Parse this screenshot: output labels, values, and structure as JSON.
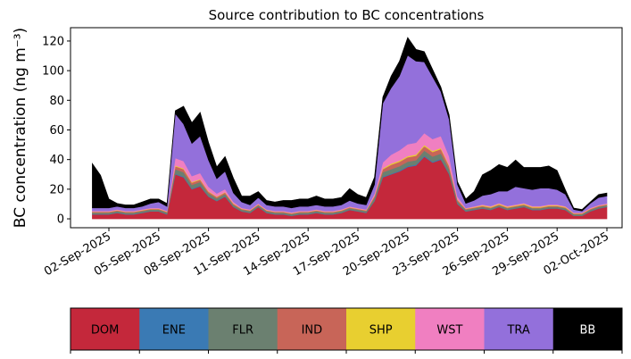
{
  "chart_data": {
    "type": "area",
    "stacked": true,
    "title": "Source contribution to BC concentrations",
    "ylabel": "BC concentration (ng m⁻³)",
    "xlabel": "",
    "ylim": [
      -6,
      129
    ],
    "yticks": [
      0,
      20,
      40,
      60,
      80,
      100,
      120
    ],
    "xtick_labels": [
      "02-Sep-2025",
      "05-Sep-2025",
      "08-Sep-2025",
      "11-Sep-2025",
      "14-Sep-2025",
      "17-Sep-2025",
      "20-Sep-2025",
      "23-Sep-2025",
      "26-Sep-2025",
      "29-Sep-2025",
      "02-Oct-2025"
    ],
    "grid": false,
    "legend_placement": "bottom",
    "x": [
      "2025-09-01",
      "2025-09-01T12:00",
      "2025-09-02",
      "2025-09-02T12:00",
      "2025-09-03",
      "2025-09-03T12:00",
      "2025-09-04",
      "2025-09-04T12:00",
      "2025-09-05",
      "2025-09-05T12:00",
      "2025-09-06",
      "2025-09-06T12:00",
      "2025-09-07",
      "2025-09-07T12:00",
      "2025-09-08",
      "2025-09-08T12:00",
      "2025-09-09",
      "2025-09-09T12:00",
      "2025-09-10",
      "2025-09-10T12:00",
      "2025-09-11",
      "2025-09-11T12:00",
      "2025-09-12",
      "2025-09-12T12:00",
      "2025-09-13",
      "2025-09-13T12:00",
      "2025-09-14",
      "2025-09-14T12:00",
      "2025-09-15",
      "2025-09-15T12:00",
      "2025-09-16",
      "2025-09-16T12:00",
      "2025-09-17",
      "2025-09-17T12:00",
      "2025-09-18",
      "2025-09-18T12:00",
      "2025-09-19",
      "2025-09-19T12:00",
      "2025-09-20",
      "2025-09-20T12:00",
      "2025-09-21",
      "2025-09-21T12:00",
      "2025-09-22",
      "2025-09-22T12:00",
      "2025-09-23",
      "2025-09-23T12:00",
      "2025-09-24",
      "2025-09-24T12:00",
      "2025-09-25",
      "2025-09-25T12:00",
      "2025-09-26",
      "2025-09-26T12:00",
      "2025-09-27",
      "2025-09-27T12:00",
      "2025-09-28",
      "2025-09-28T12:00",
      "2025-09-29",
      "2025-09-29T12:00",
      "2025-09-30",
      "2025-09-30T12:00",
      "2025-10-01",
      "2025-10-01T12:00",
      "2025-10-02"
    ],
    "series": [
      {
        "name": "DOM",
        "color": "#c4283b",
        "values": [
          3,
          3,
          3,
          4,
          3,
          3,
          4,
          5,
          5,
          3,
          30,
          28,
          20,
          22,
          15,
          12,
          15,
          8,
          5,
          4,
          8,
          4,
          3,
          3,
          2,
          3,
          3,
          4,
          3,
          3,
          4,
          6,
          5,
          4,
          12,
          28,
          30,
          32,
          35,
          36,
          42,
          38,
          40,
          30,
          10,
          5,
          6,
          7,
          6,
          8,
          6,
          7,
          8,
          6,
          6,
          7,
          7,
          6,
          2,
          2,
          5,
          7,
          8
        ]
      },
      {
        "name": "ENE",
        "color": "#3a7ab4",
        "values": [
          0.2,
          0.2,
          0.2,
          0.2,
          0.2,
          0.2,
          0.2,
          0.2,
          0.2,
          0.2,
          0.5,
          0.5,
          0.4,
          0.4,
          0.3,
          0.3,
          0.3,
          0.2,
          0.2,
          0.2,
          0.2,
          0.2,
          0.2,
          0.2,
          0.2,
          0.2,
          0.2,
          0.2,
          0.2,
          0.2,
          0.2,
          0.2,
          0.2,
          0.2,
          0.3,
          0.5,
          0.5,
          0.5,
          0.6,
          0.6,
          0.6,
          0.6,
          0.6,
          0.5,
          0.3,
          0.2,
          0.2,
          0.2,
          0.2,
          0.2,
          0.2,
          0.2,
          0.2,
          0.2,
          0.2,
          0.2,
          0.2,
          0.2,
          0.1,
          0.1,
          0.2,
          0.2,
          0.2
        ]
      },
      {
        "name": "FLR",
        "color": "#6b8070",
        "values": [
          1.0,
          1.0,
          1.0,
          1.0,
          1.0,
          1.0,
          1.0,
          1.0,
          1.0,
          1.0,
          3.0,
          3.0,
          2.5,
          2.5,
          2.0,
          1.5,
          1.5,
          1.2,
          1.0,
          1.0,
          1.0,
          1.0,
          1.0,
          1.0,
          1.0,
          1.0,
          1.0,
          1.0,
          1.0,
          1.0,
          1.0,
          1.0,
          1.0,
          1.0,
          2.0,
          3.0,
          3.0,
          3.0,
          3.0,
          3.0,
          3.5,
          3.5,
          3.5,
          3.0,
          1.5,
          1.0,
          1.0,
          1.0,
          1.0,
          1.0,
          1.0,
          1.0,
          1.0,
          1.0,
          1.0,
          1.0,
          1.0,
          1.0,
          1.0,
          1.0,
          1.0,
          1.0,
          1.0
        ]
      },
      {
        "name": "IND",
        "color": "#c86558",
        "values": [
          0.5,
          0.5,
          0.5,
          0.5,
          0.5,
          0.5,
          0.5,
          0.5,
          0.5,
          0.5,
          2.0,
          2.0,
          1.5,
          1.5,
          1.0,
          1.0,
          1.0,
          0.8,
          0.5,
          0.5,
          0.5,
          0.5,
          0.5,
          0.5,
          0.5,
          0.5,
          0.5,
          0.5,
          0.5,
          0.5,
          0.5,
          0.5,
          0.5,
          0.5,
          1.0,
          2.0,
          3.0,
          3.0,
          3.0,
          3.0,
          3.0,
          3.0,
          3.0,
          2.0,
          1.0,
          0.5,
          0.5,
          0.5,
          0.5,
          0.5,
          0.5,
          0.5,
          0.5,
          0.5,
          0.5,
          0.5,
          0.5,
          0.5,
          0.5,
          0.5,
          0.5,
          0.5,
          0.5
        ]
      },
      {
        "name": "SHP",
        "color": "#e8cf30",
        "values": [
          0.2,
          0.2,
          0.2,
          0.2,
          0.2,
          0.2,
          0.2,
          0.2,
          0.2,
          0.2,
          0.5,
          0.5,
          0.5,
          0.5,
          0.4,
          0.3,
          0.3,
          0.3,
          0.2,
          0.2,
          0.2,
          0.2,
          0.2,
          0.2,
          0.2,
          0.2,
          0.2,
          0.2,
          0.2,
          0.2,
          0.2,
          0.2,
          0.2,
          0.2,
          0.3,
          0.6,
          0.8,
          0.8,
          0.8,
          0.8,
          0.8,
          0.8,
          0.8,
          0.6,
          0.3,
          0.2,
          0.3,
          0.5,
          0.5,
          0.5,
          0.5,
          0.5,
          0.5,
          0.5,
          0.5,
          0.5,
          0.5,
          0.4,
          0.2,
          0.2,
          0.2,
          0.2,
          0.2
        ]
      },
      {
        "name": "WST",
        "color": "#f07fc1",
        "values": [
          0.5,
          0.5,
          0.5,
          0.5,
          0.5,
          0.5,
          0.5,
          0.5,
          0.5,
          0.5,
          5.0,
          5.0,
          4.0,
          4.0,
          3.0,
          2.0,
          2.0,
          1.0,
          0.5,
          0.5,
          0.5,
          0.5,
          0.5,
          0.5,
          0.5,
          0.5,
          0.5,
          0.5,
          0.5,
          0.5,
          0.5,
          0.5,
          0.5,
          0.5,
          1.5,
          4.0,
          6.0,
          7.0,
          8.0,
          8.0,
          8.0,
          8.0,
          8.0,
          6.0,
          2.0,
          0.5,
          0.5,
          0.5,
          0.5,
          0.5,
          0.5,
          0.5,
          0.5,
          0.5,
          0.5,
          0.5,
          0.5,
          0.5,
          0.5,
          0.5,
          0.5,
          0.5,
          0.5
        ]
      },
      {
        "name": "TRA",
        "color": "#9370db",
        "values": [
          2,
          2,
          2,
          2,
          2,
          2,
          2,
          3,
          4,
          3,
          30,
          25,
          22,
          25,
          18,
          10,
          12,
          6,
          4,
          3,
          4,
          3,
          3,
          3,
          3,
          3,
          3,
          3,
          3,
          3,
          3,
          4,
          3,
          3,
          6,
          40,
          45,
          50,
          60,
          55,
          48,
          42,
          30,
          25,
          8,
          3,
          4,
          6,
          8,
          8,
          10,
          12,
          10,
          11,
          12,
          11,
          10,
          8,
          2,
          1,
          3,
          5,
          5
        ]
      },
      {
        "name": "BB",
        "color": "#000000",
        "values": [
          30,
          22,
          6,
          2,
          2,
          2,
          3,
          3,
          2,
          2,
          2,
          12,
          14,
          16,
          12,
          8,
          10,
          10,
          4,
          6,
          4,
          3,
          3,
          4,
          5,
          5,
          5,
          6,
          5,
          5,
          5,
          8,
          6,
          5,
          5,
          4,
          8,
          10,
          12,
          8,
          7,
          5,
          3,
          3,
          2,
          3,
          6,
          14,
          16,
          18,
          16,
          18,
          14,
          15,
          14,
          15,
          13,
          3,
          1,
          1,
          1,
          2,
          2
        ]
      }
    ]
  }
}
